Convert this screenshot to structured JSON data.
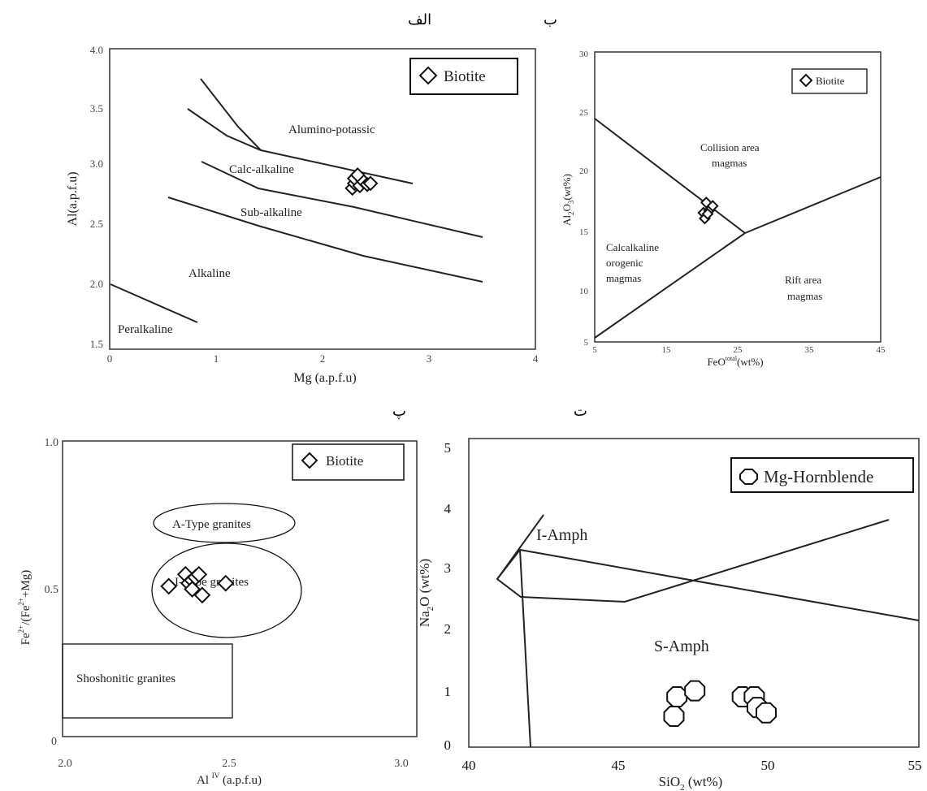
{
  "panel_labels": {
    "a": "الف",
    "b": "ب",
    "c": "پ",
    "d": "ت"
  },
  "chart_data": [
    {
      "id": "a",
      "type": "scatter",
      "xlabel": "Mg (a.p.f.u)",
      "ylabel": "Al(a.p.f.u)",
      "xlim": [
        0,
        4
      ],
      "ylim": [
        1.5,
        4.0
      ],
      "xticks": [
        "0",
        "1",
        "2",
        "3",
        "4"
      ],
      "yticks": [
        "1.5",
        "2.0",
        "2.5",
        "3.0",
        "3.5",
        "4.0"
      ],
      "legend": {
        "label": "Biotite",
        "marker": "diamond",
        "position": "top-right"
      },
      "field_labels": [
        "Alumino-potassic",
        "Calc-alkaline",
        "Sub-alkaline",
        "Alkaline",
        "Peralkaline"
      ],
      "boundaries": [
        [
          [
            1.1,
            3.75
          ],
          [
            1.45,
            3.35
          ],
          [
            1.65,
            3.15
          ]
        ],
        [
          [
            0.7,
            3.5
          ],
          [
            1.1,
            3.28
          ],
          [
            1.65,
            3.15
          ],
          [
            2.85,
            2.9
          ]
        ],
        [
          [
            0.8,
            3.07
          ],
          [
            1.4,
            2.85
          ],
          [
            2.3,
            2.7
          ],
          [
            3.5,
            2.45
          ]
        ],
        [
          [
            0.5,
            2.77
          ],
          [
            1.4,
            2.55
          ],
          [
            2.35,
            2.3
          ],
          [
            3.5,
            2.07
          ]
        ],
        [
          [
            0.0,
            2.05
          ],
          [
            0.8,
            1.72
          ]
        ]
      ],
      "series": [
        {
          "name": "Biotite",
          "marker": "diamond",
          "points": [
            [
              2.28,
              2.84
            ],
            [
              2.3,
              2.88
            ],
            [
              2.3,
              2.92
            ],
            [
              2.35,
              2.86
            ],
            [
              2.38,
              2.9
            ],
            [
              2.42,
              2.87
            ],
            [
              2.45,
              2.88
            ],
            [
              2.33,
              2.95
            ]
          ]
        }
      ]
    },
    {
      "id": "b",
      "type": "scatter",
      "xlabel": "FeOtotal(wt%)",
      "ylabel": "Al2O3(wt%)",
      "xlim": [
        5,
        45
      ],
      "ylim": [
        5,
        30
      ],
      "xticks": [
        "5",
        "15",
        "25",
        "35",
        "45"
      ],
      "yticks": [
        "5",
        "10",
        "15",
        "20",
        "25",
        "30"
      ],
      "legend": {
        "label": "Biotite",
        "marker": "diamond",
        "position": "top-right"
      },
      "field_labels": [
        "Collision area",
        "magmas",
        "Calcalkaline",
        "orogenic",
        "magmas",
        "Rift area",
        "magmas"
      ],
      "boundaries": [
        [
          [
            5,
            24.5
          ],
          [
            26.5,
            14.7
          ]
        ],
        [
          [
            5,
            5.5
          ],
          [
            26.5,
            14.7
          ],
          [
            45,
            19.4
          ]
        ]
      ],
      "series": [
        {
          "name": "Biotite",
          "marker": "diamond",
          "points": [
            [
              20.2,
              16.0
            ],
            [
              20.6,
              16.9
            ],
            [
              21.0,
              16.2
            ],
            [
              20.4,
              15.5
            ],
            [
              21.5,
              16.6
            ],
            [
              20.8,
              15.9
            ]
          ]
        }
      ]
    },
    {
      "id": "c",
      "type": "scatter",
      "xlabel": "Al IV (a.p.f.u)",
      "ylabel": "Fe2+/(Fe2++Mg)",
      "xlim": [
        2.0,
        3.0
      ],
      "ylim": [
        0,
        1.0
      ],
      "xticks": [
        "2.0",
        "2.5",
        "3.0"
      ],
      "yticks": [
        "0",
        "0.5",
        "1.0"
      ],
      "legend": {
        "label": "Biotite",
        "marker": "diamond",
        "position": "top-right"
      },
      "field_labels": [
        "A-Type granites",
        "I-Type granites",
        "Shoshonitic granites"
      ],
      "series": [
        {
          "name": "Biotite",
          "marker": "diamond",
          "points": [
            [
              2.31,
              0.51
            ],
            [
              2.36,
              0.55
            ],
            [
              2.37,
              0.52
            ],
            [
              2.38,
              0.53
            ],
            [
              2.39,
              0.54
            ],
            [
              2.4,
              0.55
            ],
            [
              2.41,
              0.48
            ],
            [
              2.38,
              0.5
            ],
            [
              2.48,
              0.52
            ]
          ]
        }
      ]
    },
    {
      "id": "d",
      "type": "scatter",
      "xlabel": "SiO2 (wt%)",
      "ylabel": "Na2O (wt%)",
      "xlim": [
        40,
        55
      ],
      "ylim": [
        0,
        5
      ],
      "xticks": [
        "40",
        "45",
        "50",
        "55"
      ],
      "yticks": [
        "0",
        "1",
        "2",
        "3",
        "4",
        "5"
      ],
      "legend": {
        "label": "Mg-Hornblende",
        "marker": "octagon",
        "position": "top-right"
      },
      "field_labels": [
        "I-Amph",
        "S-Amph"
      ],
      "boundaries": [
        [
          [
            42.5,
            3.9
          ],
          [
            41.0,
            2.47
          ],
          [
            41.7,
            2.15
          ],
          [
            45.3,
            2.08
          ],
          [
            54.0,
            3.42
          ]
        ],
        [
          [
            41.0,
            2.47
          ],
          [
            41.8,
            2.95
          ],
          [
            55.0,
            2.14
          ]
        ],
        [
          [
            41.8,
            2.95
          ],
          [
            42.1,
            0.0
          ]
        ]
      ],
      "series": [
        {
          "name": "Mg-Hornblende",
          "marker": "octagon",
          "points": [
            [
              46.9,
              0.52
            ],
            [
              47.0,
              0.85
            ],
            [
              47.6,
              0.95
            ],
            [
              49.2,
              0.85
            ],
            [
              49.6,
              0.85
            ],
            [
              49.7,
              0.67
            ],
            [
              50.0,
              0.58
            ]
          ]
        }
      ]
    }
  ]
}
